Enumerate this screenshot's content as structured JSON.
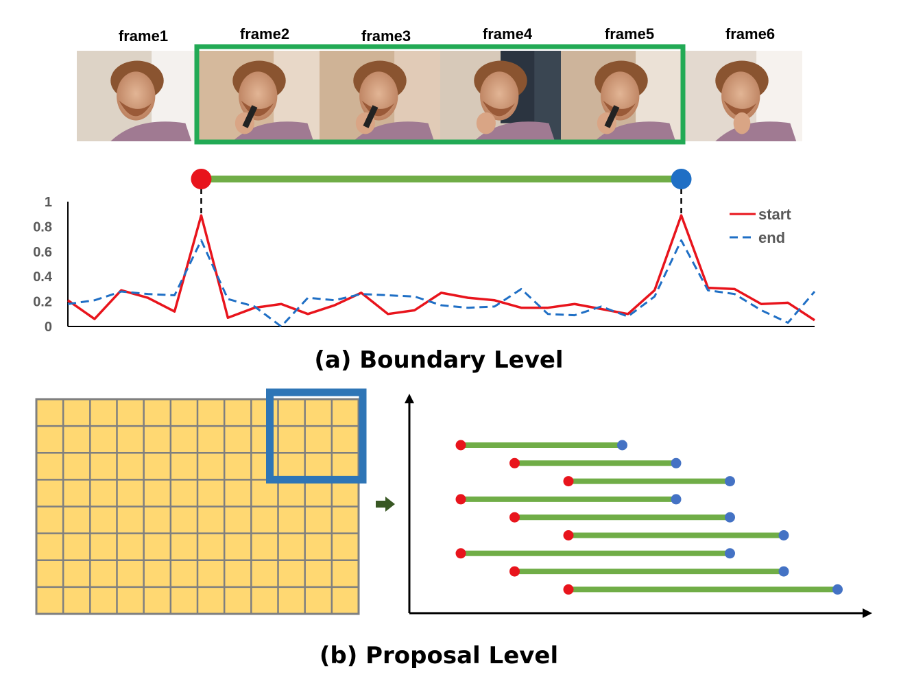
{
  "frames": {
    "labels": [
      "frame1",
      "frame2",
      "frame3",
      "frame4",
      "frame5",
      "frame6"
    ],
    "highlighted": [
      2,
      5
    ]
  },
  "colors": {
    "start": "#e8141c",
    "end": "#1f6fc5",
    "segment": "#70ad47",
    "highlight_box": "#22aa55",
    "grid_fill": "#ffd872",
    "grid_line": "#7f7f7f",
    "window_box": "#2e75b6",
    "arrow": "#385723"
  },
  "chart_data": {
    "type": "line",
    "ylim": [
      0,
      1
    ],
    "yticks": [
      "0",
      "0.2",
      "0.4",
      "0.6",
      "0.8",
      "1"
    ],
    "legend_position": "top-right",
    "x": [
      0,
      1,
      2,
      3,
      4,
      5,
      6,
      7,
      8,
      9,
      10,
      11,
      12,
      13,
      14,
      15,
      16,
      17,
      18,
      19,
      20,
      21,
      22,
      23,
      24,
      25,
      26,
      27,
      28
    ],
    "series": [
      {
        "name": "start",
        "style": "solid",
        "values": [
          0.21,
          0.06,
          0.29,
          0.23,
          0.12,
          0.89,
          0.07,
          0.15,
          0.18,
          0.1,
          0.17,
          0.27,
          0.1,
          0.13,
          0.27,
          0.23,
          0.21,
          0.15,
          0.15,
          0.18,
          0.14,
          0.1,
          0.29,
          0.89,
          0.31,
          0.3,
          0.18,
          0.19,
          0.05
        ]
      },
      {
        "name": "end",
        "style": "dashed",
        "values": [
          0.18,
          0.21,
          0.28,
          0.26,
          0.25,
          0.69,
          0.22,
          0.16,
          0.0,
          0.23,
          0.21,
          0.26,
          0.25,
          0.24,
          0.17,
          0.15,
          0.16,
          0.3,
          0.1,
          0.09,
          0.16,
          0.08,
          0.24,
          0.69,
          0.29,
          0.26,
          0.13,
          0.03,
          0.28
        ]
      }
    ],
    "peaks": [
      5,
      23
    ]
  },
  "captions": {
    "boundary": "(a) Boundary Level",
    "proposal": "(b) Proposal Level"
  },
  "grid": {
    "rows": 8,
    "cols": 12,
    "window": {
      "rows": 3,
      "cols": 3,
      "row_start": 0,
      "col_start": 9
    }
  },
  "proposals": [
    {
      "start": 0,
      "end": 3
    },
    {
      "start": 1,
      "end": 4
    },
    {
      "start": 2,
      "end": 5
    },
    {
      "start": 0,
      "end": 4
    },
    {
      "start": 1,
      "end": 5
    },
    {
      "start": 2,
      "end": 6
    },
    {
      "start": 0,
      "end": 5
    },
    {
      "start": 1,
      "end": 6
    },
    {
      "start": 2,
      "end": 7
    }
  ]
}
